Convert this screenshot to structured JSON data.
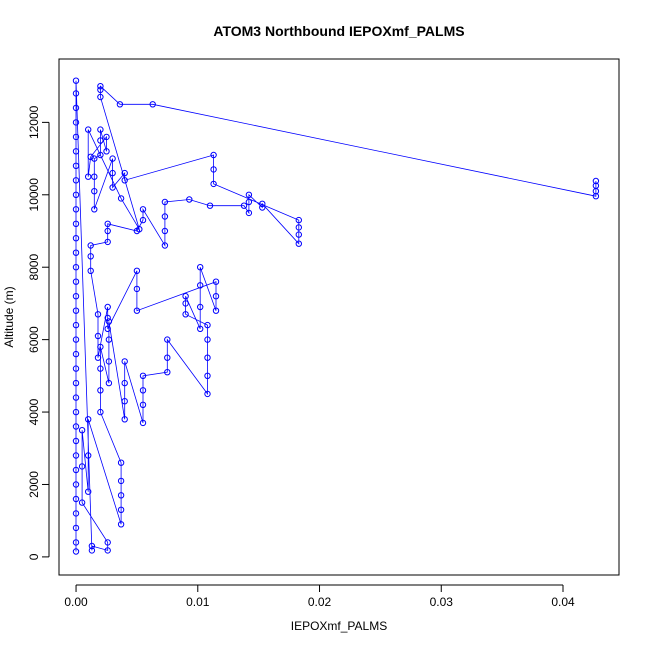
{
  "chart_data": {
    "type": "scatter",
    "title": "ATOM3 Northbound IEPOXmf_PALMS",
    "xlabel": "IEPOXmf_PALMS",
    "ylabel": "Altitude (m)",
    "xlim": [
      -0.0014,
      0.0446
    ],
    "ylim": [
      -500,
      13750
    ],
    "x_ticks": [
      0.0,
      0.01,
      0.02,
      0.03,
      0.04
    ],
    "x_tick_labels": [
      "0.00",
      "0.01",
      "0.02",
      "0.03",
      "0.04"
    ],
    "y_ticks": [
      0,
      2000,
      4000,
      6000,
      8000,
      10000,
      12000
    ],
    "y_tick_labels": [
      "0",
      "2000",
      "4000",
      "6000",
      "8000",
      "10000",
      "12000"
    ],
    "grid": false,
    "legend": "none",
    "marker": "open-circle",
    "connected": true,
    "color": "#0000ff",
    "series": [
      {
        "points": [
          [
            0.0,
            150
          ],
          [
            0.0,
            400
          ],
          [
            0.0,
            800
          ],
          [
            0.0,
            1200
          ],
          [
            0.0,
            1600
          ],
          [
            0.0,
            2000
          ],
          [
            0.0,
            2400
          ],
          [
            0.0,
            2800
          ],
          [
            0.0,
            3200
          ],
          [
            0.0,
            3600
          ],
          [
            0.0,
            4000
          ],
          [
            0.0,
            4400
          ],
          [
            0.0,
            4800
          ],
          [
            0.0,
            5200
          ],
          [
            0.0,
            5600
          ],
          [
            0.0,
            6000
          ],
          [
            0.0,
            6400
          ],
          [
            0.0,
            6800
          ],
          [
            0.0,
            7200
          ],
          [
            0.0,
            7600
          ],
          [
            0.0,
            8000
          ],
          [
            0.0,
            8400
          ],
          [
            0.0,
            8800
          ],
          [
            0.0,
            9200
          ],
          [
            0.0,
            9600
          ],
          [
            0.0,
            10000
          ],
          [
            0.0,
            10400
          ],
          [
            0.0,
            10800
          ],
          [
            0.0,
            11200
          ],
          [
            0.0,
            11600
          ],
          [
            0.0,
            12000
          ],
          [
            0.0,
            12400
          ],
          [
            0.0,
            12800
          ],
          [
            0.0,
            13150
          ],
          [
            0.0013,
            180
          ],
          [
            0.0013,
            300
          ],
          [
            0.0026,
            180
          ],
          [
            0.0026,
            400
          ],
          [
            0.0005,
            1500
          ],
          [
            0.0005,
            2500
          ],
          [
            0.0005,
            3500
          ],
          [
            0.001,
            1800
          ],
          [
            0.001,
            2800
          ],
          [
            0.001,
            3800
          ],
          [
            0.0037,
            900
          ],
          [
            0.0037,
            1300
          ],
          [
            0.0037,
            1700
          ],
          [
            0.0037,
            2100
          ],
          [
            0.0037,
            2600
          ],
          [
            0.002,
            4000
          ],
          [
            0.002,
            4600
          ],
          [
            0.002,
            5200
          ],
          [
            0.002,
            5800
          ],
          [
            0.0027,
            4800
          ],
          [
            0.0027,
            5400
          ],
          [
            0.0027,
            6000
          ],
          [
            0.0027,
            6500
          ],
          [
            0.004,
            3800
          ],
          [
            0.004,
            4300
          ],
          [
            0.004,
            4800
          ],
          [
            0.004,
            5400
          ],
          [
            0.0055,
            3700
          ],
          [
            0.0055,
            4200
          ],
          [
            0.0055,
            4600
          ],
          [
            0.0055,
            5000
          ],
          [
            0.0075,
            5100
          ],
          [
            0.0075,
            5500
          ],
          [
            0.0075,
            6000
          ],
          [
            0.0108,
            4500
          ],
          [
            0.0108,
            5000
          ],
          [
            0.0108,
            5500
          ],
          [
            0.0108,
            6000
          ],
          [
            0.0108,
            6400
          ],
          [
            0.009,
            6700
          ],
          [
            0.009,
            7000
          ],
          [
            0.009,
            7200
          ],
          [
            0.0102,
            6300
          ],
          [
            0.0102,
            6900
          ],
          [
            0.0102,
            7500
          ],
          [
            0.0102,
            8000
          ],
          [
            0.0115,
            6800
          ],
          [
            0.0115,
            7200
          ],
          [
            0.0115,
            7600
          ],
          [
            0.005,
            6800
          ],
          [
            0.005,
            7400
          ],
          [
            0.005,
            7900
          ],
          [
            0.0026,
            6300
          ],
          [
            0.0026,
            6600
          ],
          [
            0.0026,
            6900
          ],
          [
            0.0018,
            5500
          ],
          [
            0.0018,
            6100
          ],
          [
            0.0018,
            6700
          ],
          [
            0.0012,
            7900
          ],
          [
            0.0012,
            8300
          ],
          [
            0.0012,
            8600
          ],
          [
            0.0026,
            8700
          ],
          [
            0.0026,
            9000
          ],
          [
            0.0026,
            9200
          ],
          [
            0.005,
            9000
          ],
          [
            0.0055,
            9300
          ],
          [
            0.0055,
            9600
          ],
          [
            0.0073,
            8600
          ],
          [
            0.0073,
            9000
          ],
          [
            0.0073,
            9400
          ],
          [
            0.0073,
            9800
          ],
          [
            0.0093,
            9870
          ],
          [
            0.011,
            9700
          ],
          [
            0.0138,
            9700
          ],
          [
            0.0142,
            9500
          ],
          [
            0.0142,
            9800
          ],
          [
            0.0142,
            10000
          ],
          [
            0.0153,
            9650
          ],
          [
            0.0153,
            9750
          ],
          [
            0.0183,
            8650
          ],
          [
            0.0183,
            8900
          ],
          [
            0.0183,
            9100
          ],
          [
            0.0183,
            9300
          ],
          [
            0.0113,
            10300
          ],
          [
            0.0113,
            10700
          ],
          [
            0.0113,
            11100
          ],
          [
            0.004,
            10400
          ],
          [
            0.004,
            10600
          ],
          [
            0.003,
            10200
          ],
          [
            0.003,
            10600
          ],
          [
            0.003,
            11000
          ],
          [
            0.0015,
            9600
          ],
          [
            0.0015,
            10100
          ],
          [
            0.0015,
            10500
          ],
          [
            0.0015,
            11000
          ],
          [
            0.002,
            11100
          ],
          [
            0.002,
            11500
          ],
          [
            0.002,
            11800
          ],
          [
            0.0025,
            11200
          ],
          [
            0.0025,
            11600
          ],
          [
            0.0012,
            11050
          ],
          [
            0.001,
            10500
          ],
          [
            0.001,
            11800
          ],
          [
            0.0037,
            9900
          ],
          [
            0.0052,
            9050
          ],
          [
            0.002,
            12700
          ],
          [
            0.002,
            12900
          ],
          [
            0.002,
            13000
          ],
          [
            0.0036,
            12500
          ],
          [
            0.0063,
            12500
          ],
          [
            0.0427,
            9960
          ],
          [
            0.0427,
            10100
          ],
          [
            0.0427,
            10250
          ],
          [
            0.0427,
            10380
          ]
        ]
      }
    ]
  }
}
